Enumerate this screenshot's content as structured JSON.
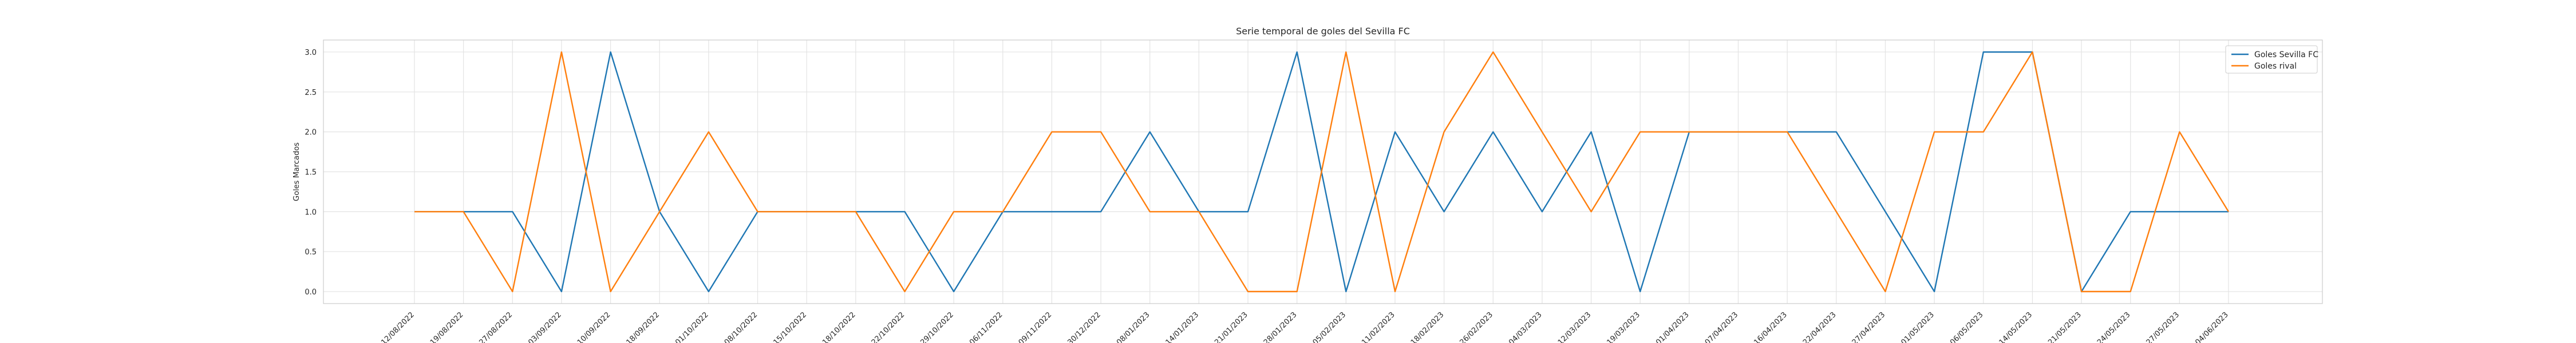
{
  "chart_data": {
    "type": "line",
    "title": "Serie temporal de goles del Sevilla FC",
    "xlabel": "",
    "ylabel": "Goles Marcados",
    "ylim": [
      -0.15,
      3.15
    ],
    "yticks": [
      "0.0",
      "0.5",
      "1.0",
      "1.5",
      "2.0",
      "2.5",
      "3.0"
    ],
    "grid": true,
    "legend_position": "top-right",
    "x": [
      "12/08/2022",
      "19/08/2022",
      "27/08/2022",
      "03/09/2022",
      "10/09/2022",
      "18/09/2022",
      "01/10/2022",
      "08/10/2022",
      "15/10/2022",
      "18/10/2022",
      "22/10/2022",
      "29/10/2022",
      "06/11/2022",
      "09/11/2022",
      "30/12/2022",
      "08/01/2023",
      "14/01/2023",
      "21/01/2023",
      "28/01/2023",
      "05/02/2023",
      "11/02/2023",
      "18/02/2023",
      "26/02/2023",
      "04/03/2023",
      "12/03/2023",
      "19/03/2023",
      "01/04/2023",
      "07/04/2023",
      "16/04/2023",
      "22/04/2023",
      "27/04/2023",
      "01/05/2023",
      "06/05/2023",
      "14/05/2023",
      "21/05/2023",
      "24/05/2023",
      "27/05/2023",
      "04/06/2023"
    ],
    "series": [
      {
        "name": "Goles Sevilla FC",
        "color": "#1f77b4",
        "values": [
          1,
          1,
          1,
          0,
          3,
          1,
          0,
          1,
          1,
          1,
          1,
          0,
          1,
          1,
          1,
          2,
          1,
          1,
          3,
          0,
          2,
          1,
          2,
          1,
          2,
          0,
          2,
          2,
          2,
          2,
          1,
          0,
          3,
          3,
          0,
          1,
          1,
          1
        ]
      },
      {
        "name": "Goles rival",
        "color": "#ff7f0e",
        "values": [
          1,
          1,
          0,
          3,
          0,
          1,
          2,
          1,
          1,
          1,
          0,
          1,
          1,
          2,
          2,
          1,
          1,
          0,
          0,
          3,
          0,
          2,
          3,
          2,
          1,
          2,
          2,
          2,
          2,
          1,
          0,
          2,
          2,
          3,
          0,
          0,
          2,
          1
        ]
      }
    ]
  }
}
